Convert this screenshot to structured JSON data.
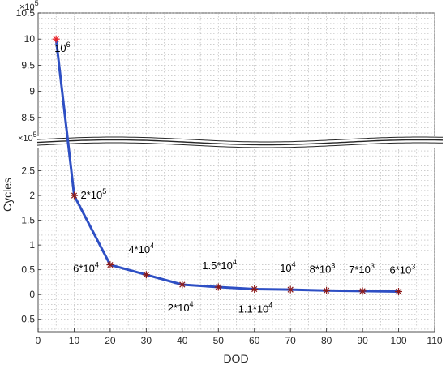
{
  "chart_data": {
    "type": "line",
    "xlabel": "DOD",
    "ylabel": "Cycles",
    "xlim": [
      0,
      110
    ],
    "grid": true,
    "broken_y_axis": true,
    "upper_segment": {
      "ylim": [
        8.0,
        10.5
      ],
      "exponent_label": "×10",
      "exponent_sup": "5",
      "ticks": [
        "8.5",
        "9",
        "9.5",
        "10",
        "10.5"
      ]
    },
    "lower_segment": {
      "ylim": [
        -0.75,
        3.0
      ],
      "exponent_label": "×10",
      "exponent_sup": "5",
      "ticks": [
        "-0.5",
        "0",
        "0.5",
        "1",
        "1.5",
        "2",
        "2.5"
      ]
    },
    "x_ticks": [
      "0",
      "10",
      "20",
      "30",
      "40",
      "50",
      "60",
      "70",
      "80",
      "90",
      "100",
      "110"
    ],
    "line_color": "#2e4fc4",
    "marker_color": "#8b1a1a",
    "highlight_marker_color": "#e8242a",
    "series": [
      {
        "x": [
          5,
          10,
          20,
          30,
          40,
          50,
          60,
          70,
          80,
          90,
          100
        ],
        "y": [
          10.0,
          2.0,
          0.6,
          0.4,
          0.2,
          0.15,
          0.11,
          0.1,
          0.08,
          0.07,
          0.06
        ]
      }
    ],
    "annotations": [
      {
        "base": "10",
        "sup": "6"
      },
      {
        "base": "2*10",
        "sup": "5"
      },
      {
        "base": "6*10",
        "sup": "4"
      },
      {
        "base": "4*10",
        "sup": "4"
      },
      {
        "base": "2*10",
        "sup": "4"
      },
      {
        "base": "1.5*10",
        "sup": "4"
      },
      {
        "base": "1.1*10",
        "sup": "4"
      },
      {
        "base": "10",
        "sup": "4"
      },
      {
        "base": "8*10",
        "sup": "3"
      },
      {
        "base": "7*10",
        "sup": "3"
      },
      {
        "base": "6*10",
        "sup": "3"
      }
    ]
  }
}
